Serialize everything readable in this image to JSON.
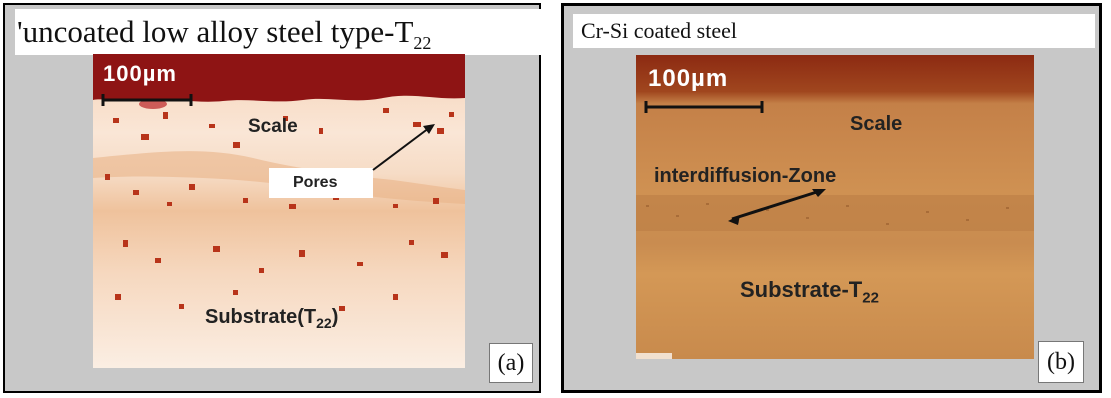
{
  "panel_a": {
    "caption": "'uncoated low alloy steel type-T",
    "caption_sub": "22",
    "scale_bar": "100µm",
    "scale_label": "Scale",
    "pores_label": "Pores",
    "substrate_label": "Substrate(T",
    "substrate_sub": "22",
    "substrate_close": ")",
    "letter": "(a)"
  },
  "panel_b": {
    "caption": "Cr-Si coated steel",
    "scale_bar": "100µm",
    "scale_label": "Scale",
    "interdiffusion_label": "interdiffusion-Zone",
    "substrate_label": "Substrate-T",
    "substrate_sub": "22",
    "letter": "(b)"
  },
  "colors": {
    "dark_top": "#8a0f0f",
    "scale_pale": "#f8e6d2",
    "substrate_a": "#f4d3b3",
    "substrate_b": "#d29456",
    "pore": "#b8341a"
  }
}
